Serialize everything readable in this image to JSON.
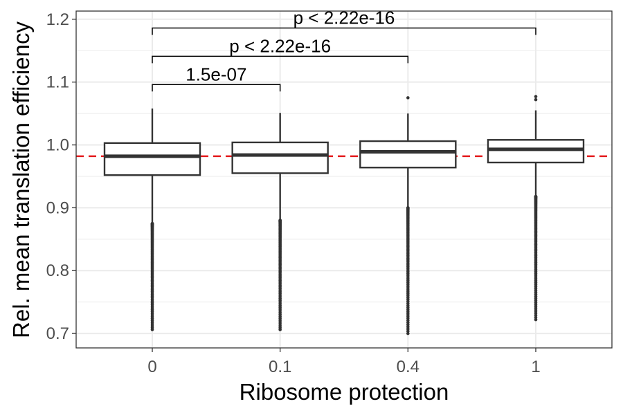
{
  "chart_data": {
    "type": "box",
    "title": "",
    "xlabel": "Ribosome protection",
    "ylabel": "Rel. mean translation efficiency",
    "ylim": [
      0.677,
      1.213
    ],
    "yticks": [
      0.7,
      0.8,
      0.9,
      1.0,
      1.1,
      1.2
    ],
    "ytick_labels": [
      "0.7",
      "0.8",
      "0.9",
      "1.0",
      "1.1",
      "1.2"
    ],
    "categories": [
      "0",
      "0.1",
      "0.4",
      "1"
    ],
    "grid": true,
    "reference_line": {
      "y": 0.982,
      "style": "dashed",
      "color": "#e41a1c"
    },
    "boxes": [
      {
        "category": "0",
        "q1": 0.952,
        "median": 0.982,
        "q3": 1.003,
        "whisker_low": 0.875,
        "whisker_high": 1.058,
        "outliers_low_range": [
          0.706,
          0.875
        ],
        "outliers_high": []
      },
      {
        "category": "0.1",
        "q1": 0.955,
        "median": 0.984,
        "q3": 1.004,
        "whisker_low": 0.88,
        "whisker_high": 1.051,
        "outliers_low_range": [
          0.706,
          0.88
        ],
        "outliers_high": []
      },
      {
        "category": "0.4",
        "q1": 0.964,
        "median": 0.989,
        "q3": 1.006,
        "whisker_low": 0.9,
        "whisker_high": 1.05,
        "outliers_low_range": [
          0.7,
          0.9
        ],
        "outliers_high": [
          1.075
        ]
      },
      {
        "category": "1",
        "q1": 0.972,
        "median": 0.993,
        "q3": 1.008,
        "whisker_low": 0.918,
        "whisker_high": 1.055,
        "outliers_low_range": [
          0.722,
          0.918
        ],
        "outliers_high": [
          1.072,
          1.077
        ]
      }
    ],
    "comparisons": [
      {
        "from": "0",
        "to": "0.1",
        "label": "1.5e-07",
        "y": 1.096
      },
      {
        "from": "0",
        "to": "0.4",
        "label": "p < 2.22e-16",
        "y": 1.141
      },
      {
        "from": "0",
        "to": "1",
        "label": "p < 2.22e-16",
        "y": 1.186
      }
    ],
    "colors": {
      "box": "#333333",
      "panel_border": "#333333",
      "grid": "#ebebeb",
      "reference": "#e41a1c"
    }
  }
}
